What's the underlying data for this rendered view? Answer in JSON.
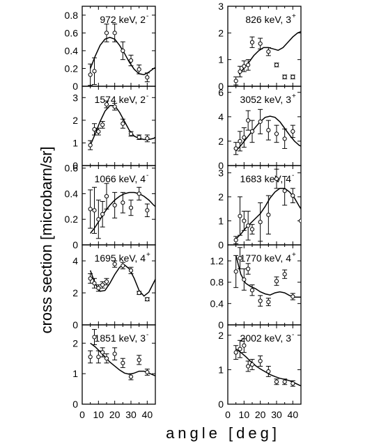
{
  "figure": {
    "xlabel": "angle [deg]",
    "ylabel": "cross section  [microbarn/sr]"
  },
  "chart_data": [
    {
      "type": "scatter",
      "panel_label": "972 keV,  2",
      "parity": "-",
      "xlim": [
        0,
        45
      ],
      "ylim": [
        0,
        0.9
      ],
      "yticks": [
        0,
        0.2,
        0.4,
        0.6,
        0.8
      ],
      "yticklabels": [
        "0",
        "0.2",
        "0.4",
        "0.6",
        "0.8"
      ],
      "points": [
        {
          "x": 5,
          "y": 0.13,
          "err": 0.12
        },
        {
          "x": 7.5,
          "y": 0.17,
          "err": 0.15
        },
        {
          "x": 15,
          "y": 0.6,
          "err": 0.1
        },
        {
          "x": 20,
          "y": 0.6,
          "err": 0.1
        },
        {
          "x": 25,
          "y": 0.4,
          "err": 0.1
        },
        {
          "x": 30,
          "y": 0.29,
          "err": 0.06
        },
        {
          "x": 35,
          "y": 0.19,
          "err": 0.05
        },
        {
          "x": 40,
          "y": 0.1,
          "err": 0.05
        }
      ],
      "curve": {
        "x": [
          5,
          8,
          11,
          14,
          17,
          20,
          23,
          26,
          29,
          32,
          35,
          38,
          41,
          44,
          45
        ],
        "y": [
          0.2,
          0.34,
          0.46,
          0.53,
          0.55,
          0.53,
          0.46,
          0.37,
          0.27,
          0.19,
          0.14,
          0.13,
          0.16,
          0.2,
          0.21
        ]
      }
    },
    {
      "type": "scatter",
      "panel_label": "826 keV,  3",
      "parity": "+",
      "xlim": [
        0,
        45
      ],
      "ylim": [
        0,
        3
      ],
      "yticks": [
        0,
        1,
        2,
        3
      ],
      "yticklabels": [
        "0",
        "1",
        "2",
        "3"
      ],
      "points": [
        {
          "x": 5,
          "y": 0.2,
          "err": 0.15
        },
        {
          "x": 7.5,
          "y": 0.55,
          "err": 0.2
        },
        {
          "x": 10,
          "y": 0.75,
          "err": 0.2
        },
        {
          "x": 12.5,
          "y": 0.8,
          "err": 0.2
        },
        {
          "x": 15,
          "y": 1.65,
          "err": 0.2
        },
        {
          "x": 20,
          "y": 1.6,
          "err": 0.2
        },
        {
          "x": 25,
          "y": 1.3,
          "err": 0.15
        },
        {
          "x": 30,
          "y": 0.8,
          "err": 0.07
        },
        {
          "x": 35,
          "y": 0.35,
          "err": 0.07
        },
        {
          "x": 40,
          "y": 0.35,
          "err": 0.07
        }
      ],
      "curve": {
        "x": [
          7,
          10,
          13,
          16,
          19,
          22,
          25,
          28,
          31,
          34,
          37,
          40,
          43,
          45
        ],
        "y": [
          0.45,
          0.68,
          0.9,
          1.15,
          1.33,
          1.45,
          1.45,
          1.4,
          1.35,
          1.45,
          1.65,
          1.85,
          2,
          2.05
        ]
      }
    },
    {
      "type": "scatter",
      "panel_label": "1574 keV,  2",
      "parity": "-",
      "xlim": [
        0,
        45
      ],
      "ylim": [
        0,
        3.5
      ],
      "yticks": [
        0,
        1,
        2,
        3
      ],
      "yticklabels": [
        "0",
        "1",
        "2",
        "3"
      ],
      "points": [
        {
          "x": 5,
          "y": 0.9,
          "err": 0.2
        },
        {
          "x": 7.5,
          "y": 1.6,
          "err": 0.25
        },
        {
          "x": 10,
          "y": 1.5,
          "err": 0.15
        },
        {
          "x": 12.5,
          "y": 1.8,
          "err": 0.15
        },
        {
          "x": 15,
          "y": 2.7,
          "err": 0.15
        },
        {
          "x": 20,
          "y": 2.6,
          "err": 0.15
        },
        {
          "x": 25,
          "y": 1.85,
          "err": 0.2
        },
        {
          "x": 30,
          "y": 1.4,
          "err": 0.1
        },
        {
          "x": 35,
          "y": 1.25,
          "err": 0.1
        },
        {
          "x": 40,
          "y": 1.2,
          "err": 0.15
        }
      ],
      "curve": {
        "x": [
          5,
          8,
          11,
          14,
          17,
          20,
          23,
          26,
          29,
          32,
          35,
          38,
          41,
          44,
          45
        ],
        "y": [
          0.9,
          1.4,
          1.95,
          2.4,
          2.65,
          2.65,
          2.35,
          1.95,
          1.55,
          1.3,
          1.2,
          1.15,
          1.15,
          1.2,
          1.25
        ]
      }
    },
    {
      "type": "scatter",
      "panel_label": "3052 keV,  3",
      "parity": "+",
      "xlim": [
        0,
        45
      ],
      "ylim": [
        0,
        6.5
      ],
      "yticks": [
        0,
        2,
        4,
        6
      ],
      "yticklabels": [
        "0",
        "2",
        "4",
        "6"
      ],
      "points": [
        {
          "x": 5,
          "y": 1.4,
          "err": 0.5
        },
        {
          "x": 7.5,
          "y": 2,
          "err": 0.8
        },
        {
          "x": 10,
          "y": 2.3,
          "err": 0.8
        },
        {
          "x": 12.5,
          "y": 3.7,
          "err": 0.8
        },
        {
          "x": 15,
          "y": 2.8,
          "err": 0.9
        },
        {
          "x": 20,
          "y": 3.6,
          "err": 1
        },
        {
          "x": 25,
          "y": 2.9,
          "err": 0.8
        },
        {
          "x": 30,
          "y": 2.6,
          "err": 0.7
        },
        {
          "x": 35,
          "y": 2.2,
          "err": 0.8
        },
        {
          "x": 40,
          "y": 2.8,
          "err": 0.5
        }
      ],
      "curve": {
        "x": [
          5,
          8,
          11,
          14,
          17,
          20,
          23,
          26,
          29,
          32,
          35,
          38,
          41,
          44,
          45
        ],
        "y": [
          1.2,
          1.65,
          2.15,
          2.65,
          3.15,
          3.6,
          3.95,
          4.05,
          3.95,
          3.6,
          3.05,
          2.5,
          2,
          1.65,
          1.6
        ]
      }
    },
    {
      "type": "scatter",
      "panel_label": "1066 keV,  4",
      "parity": "-",
      "xlim": [
        0,
        45
      ],
      "ylim": [
        0,
        0.62
      ],
      "yticks": [
        0,
        0.2,
        0.4,
        0.6
      ],
      "yticklabels": [
        "0",
        "0.2",
        "0.4",
        "0.6"
      ],
      "points": [
        {
          "x": 5,
          "y": 0.28,
          "err": 0.15
        },
        {
          "x": 7.5,
          "y": 0.27,
          "err": 0.18
        },
        {
          "x": 10,
          "y": 0.2,
          "err": 0.15
        },
        {
          "x": 12.5,
          "y": 0.24,
          "err": 0.1
        },
        {
          "x": 15,
          "y": 0.38,
          "err": 0.1
        },
        {
          "x": 20,
          "y": 0.31,
          "err": 0.1
        },
        {
          "x": 25,
          "y": 0.33,
          "err": 0.08
        },
        {
          "x": 30,
          "y": 0.29,
          "err": 0.06
        },
        {
          "x": 35,
          "y": 0.4,
          "err": 0.05
        },
        {
          "x": 40,
          "y": 0.27,
          "err": 0.05
        }
      ],
      "curve": {
        "x": [
          5,
          8,
          11,
          14,
          17,
          20,
          23,
          26,
          29,
          32,
          35,
          38,
          41,
          44,
          45
        ],
        "y": [
          0.09,
          0.14,
          0.2,
          0.26,
          0.31,
          0.35,
          0.38,
          0.4,
          0.41,
          0.41,
          0.4,
          0.38,
          0.35,
          0.31,
          0.3
        ]
      }
    },
    {
      "type": "scatter",
      "panel_label": "1683 keV,  4",
      "parity": "-",
      "xlim": [
        0,
        45
      ],
      "ylim": [
        0,
        3.3
      ],
      "yticks": [
        0,
        1,
        2,
        3
      ],
      "yticklabels": [
        "0",
        "1",
        "2",
        "3"
      ],
      "points": [
        {
          "x": 5,
          "y": 0.2,
          "err": 0.15
        },
        {
          "x": 7.5,
          "y": 1.2,
          "err": 0.8
        },
        {
          "x": 10,
          "y": 1,
          "err": 0.4
        },
        {
          "x": 12.5,
          "y": 0.8,
          "err": 0.6
        },
        {
          "x": 15,
          "y": 0.65,
          "err": 0.2
        },
        {
          "x": 20,
          "y": 0.95,
          "err": 0.8
        },
        {
          "x": 25,
          "y": 1.25,
          "err": 0.8
        },
        {
          "x": 30,
          "y": 2.75,
          "err": 0.4
        },
        {
          "x": 35,
          "y": 2.25,
          "err": 0.6
        },
        {
          "x": 40,
          "y": 2.05,
          "err": 0.3
        },
        {
          "x": 45,
          "y": 1,
          "err": 0
        }
      ],
      "curve": {
        "x": [
          5,
          8,
          11,
          14,
          17,
          20,
          23,
          26,
          29,
          32,
          35,
          38,
          41,
          44,
          45
        ],
        "y": [
          0.25,
          0.45,
          0.7,
          0.9,
          1.1,
          1.3,
          1.6,
          1.95,
          2.2,
          2.35,
          2.35,
          2.2,
          1.95,
          1.6,
          1.5
        ]
      }
    },
    {
      "type": "scatter",
      "panel_label": "1695 keV,  4",
      "parity": "+",
      "xlim": [
        0,
        45
      ],
      "ylim": [
        0,
        5
      ],
      "yticks": [
        0,
        2,
        4
      ],
      "yticklabels": [
        "0",
        "2",
        "4"
      ],
      "points": [
        {
          "x": 5,
          "y": 2.9,
          "err": 0.3
        },
        {
          "x": 7.5,
          "y": 2.6,
          "err": 0.3
        },
        {
          "x": 10,
          "y": 2.3,
          "err": 0.2
        },
        {
          "x": 12.5,
          "y": 2.5,
          "err": 0.2
        },
        {
          "x": 15,
          "y": 2.7,
          "err": 0.2
        },
        {
          "x": 20,
          "y": 3.8,
          "err": 0.2
        },
        {
          "x": 25,
          "y": 3.7,
          "err": 0.2
        },
        {
          "x": 30,
          "y": 3.4,
          "err": 0.2
        },
        {
          "x": 35,
          "y": 2,
          "err": 0.1
        },
        {
          "x": 40,
          "y": 1.6,
          "err": 0.1
        }
      ],
      "curve": {
        "x": [
          5,
          8,
          11,
          14,
          17,
          20,
          23,
          26,
          29,
          32,
          35,
          38,
          41,
          44,
          45
        ],
        "y": [
          3.4,
          2.55,
          2.1,
          2.15,
          2.6,
          3.15,
          3.6,
          3.75,
          3.5,
          2.9,
          2.15,
          1.8,
          2.05,
          2.65,
          2.85
        ]
      }
    },
    {
      "type": "scatter",
      "panel_label": "1770 keV,  4",
      "parity": "+",
      "xlim": [
        0,
        45
      ],
      "ylim": [
        0,
        1.5
      ],
      "yticks": [
        0,
        0.4,
        0.8,
        1.2
      ],
      "yticklabels": [
        "0",
        "0.4",
        "0.8",
        "1.2"
      ],
      "points": [
        {
          "x": 5,
          "y": 1,
          "err": 0.3
        },
        {
          "x": 7.5,
          "y": 1.25,
          "err": 0.2
        },
        {
          "x": 10,
          "y": 0.85,
          "err": 0.2
        },
        {
          "x": 12.5,
          "y": 1.05,
          "err": 0.1
        },
        {
          "x": 15,
          "y": 0.65,
          "err": 0.1
        },
        {
          "x": 20,
          "y": 0.45,
          "err": 0.1
        },
        {
          "x": 25,
          "y": 0.43,
          "err": 0.07
        },
        {
          "x": 30,
          "y": 0.82,
          "err": 0.08
        },
        {
          "x": 35,
          "y": 0.95,
          "err": 0.08
        },
        {
          "x": 40,
          "y": 0.53,
          "err": 0.06
        }
      ],
      "curve": {
        "x": [
          5,
          8,
          11,
          14,
          17,
          20,
          23,
          26,
          29,
          32,
          35,
          38,
          41,
          44,
          45
        ],
        "y": [
          1.3,
          0.95,
          0.78,
          0.72,
          0.68,
          0.62,
          0.58,
          0.56,
          0.6,
          0.62,
          0.6,
          0.55,
          0.52,
          0.52,
          0.52
        ]
      }
    },
    {
      "type": "scatter",
      "panel_label": "1851 keV,  3",
      "parity": "-",
      "xlim": [
        0,
        45
      ],
      "ylim": [
        0,
        2.6
      ],
      "yticks": [
        0,
        1,
        2
      ],
      "yticklabels": [
        "0",
        "1",
        "2"
      ],
      "points": [
        {
          "x": 5,
          "y": 1.55,
          "err": 0.2
        },
        {
          "x": 7.5,
          "y": 2.2,
          "err": 0.25
        },
        {
          "x": 10,
          "y": 1.55,
          "err": 0.2
        },
        {
          "x": 12.5,
          "y": 1.7,
          "err": 0.15
        },
        {
          "x": 15,
          "y": 1.5,
          "err": 0.15
        },
        {
          "x": 20,
          "y": 1.65,
          "err": 0.2
        },
        {
          "x": 25,
          "y": 1.35,
          "err": 0.15
        },
        {
          "x": 30,
          "y": 0.9,
          "err": 0.1
        },
        {
          "x": 35,
          "y": 1.45,
          "err": 0.15
        },
        {
          "x": 40,
          "y": 1.05,
          "err": 0.1
        }
      ],
      "curve": {
        "x": [
          5,
          8,
          11,
          14,
          17,
          20,
          23,
          26,
          29,
          32,
          35,
          38,
          41,
          44,
          45
        ],
        "y": [
          2,
          1.88,
          1.72,
          1.55,
          1.38,
          1.25,
          1.12,
          1.02,
          0.98,
          1.02,
          1.08,
          1.08,
          1.02,
          0.95,
          0.93
        ]
      }
    },
    {
      "type": "scatter",
      "panel_label": "2002 keV,  3",
      "parity": "-",
      "xlim": [
        0,
        45
      ],
      "ylim": [
        0,
        2.3
      ],
      "yticks": [
        0,
        1,
        2
      ],
      "yticklabels": [
        "0",
        "1",
        "2"
      ],
      "xticks": [
        0,
        10,
        20,
        30,
        40
      ],
      "xticklabels": [
        "0",
        "10",
        "20",
        "30",
        "40"
      ],
      "points": [
        {
          "x": 5,
          "y": 1.5,
          "err": 0.2
        },
        {
          "x": 7.5,
          "y": 1.6,
          "err": 0.25
        },
        {
          "x": 10,
          "y": 1.7,
          "err": 0.2
        },
        {
          "x": 12.5,
          "y": 1.1,
          "err": 0.15
        },
        {
          "x": 15,
          "y": 1.15,
          "err": 0.15
        },
        {
          "x": 20,
          "y": 1.25,
          "err": 0.15
        },
        {
          "x": 25,
          "y": 0.95,
          "err": 0.15
        },
        {
          "x": 30,
          "y": 0.65,
          "err": 0.08
        },
        {
          "x": 35,
          "y": 0.65,
          "err": 0.08
        },
        {
          "x": 40,
          "y": 0.6,
          "err": 0.08
        }
      ],
      "curve": {
        "x": [
          5,
          8,
          11,
          14,
          17,
          20,
          23,
          26,
          29,
          32,
          35,
          38,
          41,
          44,
          45
        ],
        "y": [
          1.6,
          1.5,
          1.38,
          1.24,
          1.12,
          1.02,
          0.94,
          0.86,
          0.8,
          0.75,
          0.72,
          0.68,
          0.62,
          0.55,
          0.53
        ]
      }
    }
  ]
}
